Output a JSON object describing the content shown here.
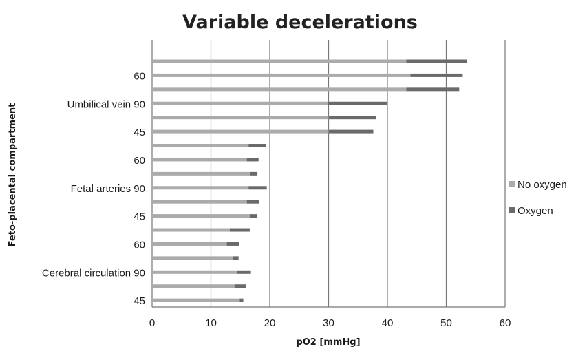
{
  "chart_data": {
    "type": "bar",
    "orientation": "horizontal",
    "stacked": true,
    "title": "Variable decelerations",
    "xlabel": "pO2 [mmHg]",
    "ylabel": "Feto-placental compartment",
    "xlim": [
      0,
      60
    ],
    "xticks": [
      "0",
      "10",
      "20",
      "30",
      "40",
      "50",
      "60"
    ],
    "grid": "vertical",
    "legend_position": "right",
    "y_tick_labels": [
      "60",
      "Umbilical vein 90",
      "45",
      "60",
      "Fetal arteries 90",
      "45",
      "60",
      "Cerebral circulation 90",
      "45"
    ],
    "series": [
      {
        "name": "No oxygen",
        "color": "#ababab",
        "values": [
          43.2,
          43.9,
          43.2,
          29.8,
          30.0,
          30.0,
          16.4,
          16.1,
          16.6,
          16.4,
          16.1,
          16.6,
          13.2,
          12.7,
          13.7,
          14.4,
          14.0,
          14.9
        ]
      },
      {
        "name": "Oxygen",
        "color": "#6a6a6a",
        "values": [
          10.3,
          8.9,
          9.0,
          10.1,
          8.1,
          7.6,
          3.0,
          2.0,
          1.3,
          3.1,
          2.1,
          1.3,
          3.4,
          2.1,
          1.0,
          2.4,
          2.0,
          0.6
        ]
      }
    ]
  }
}
